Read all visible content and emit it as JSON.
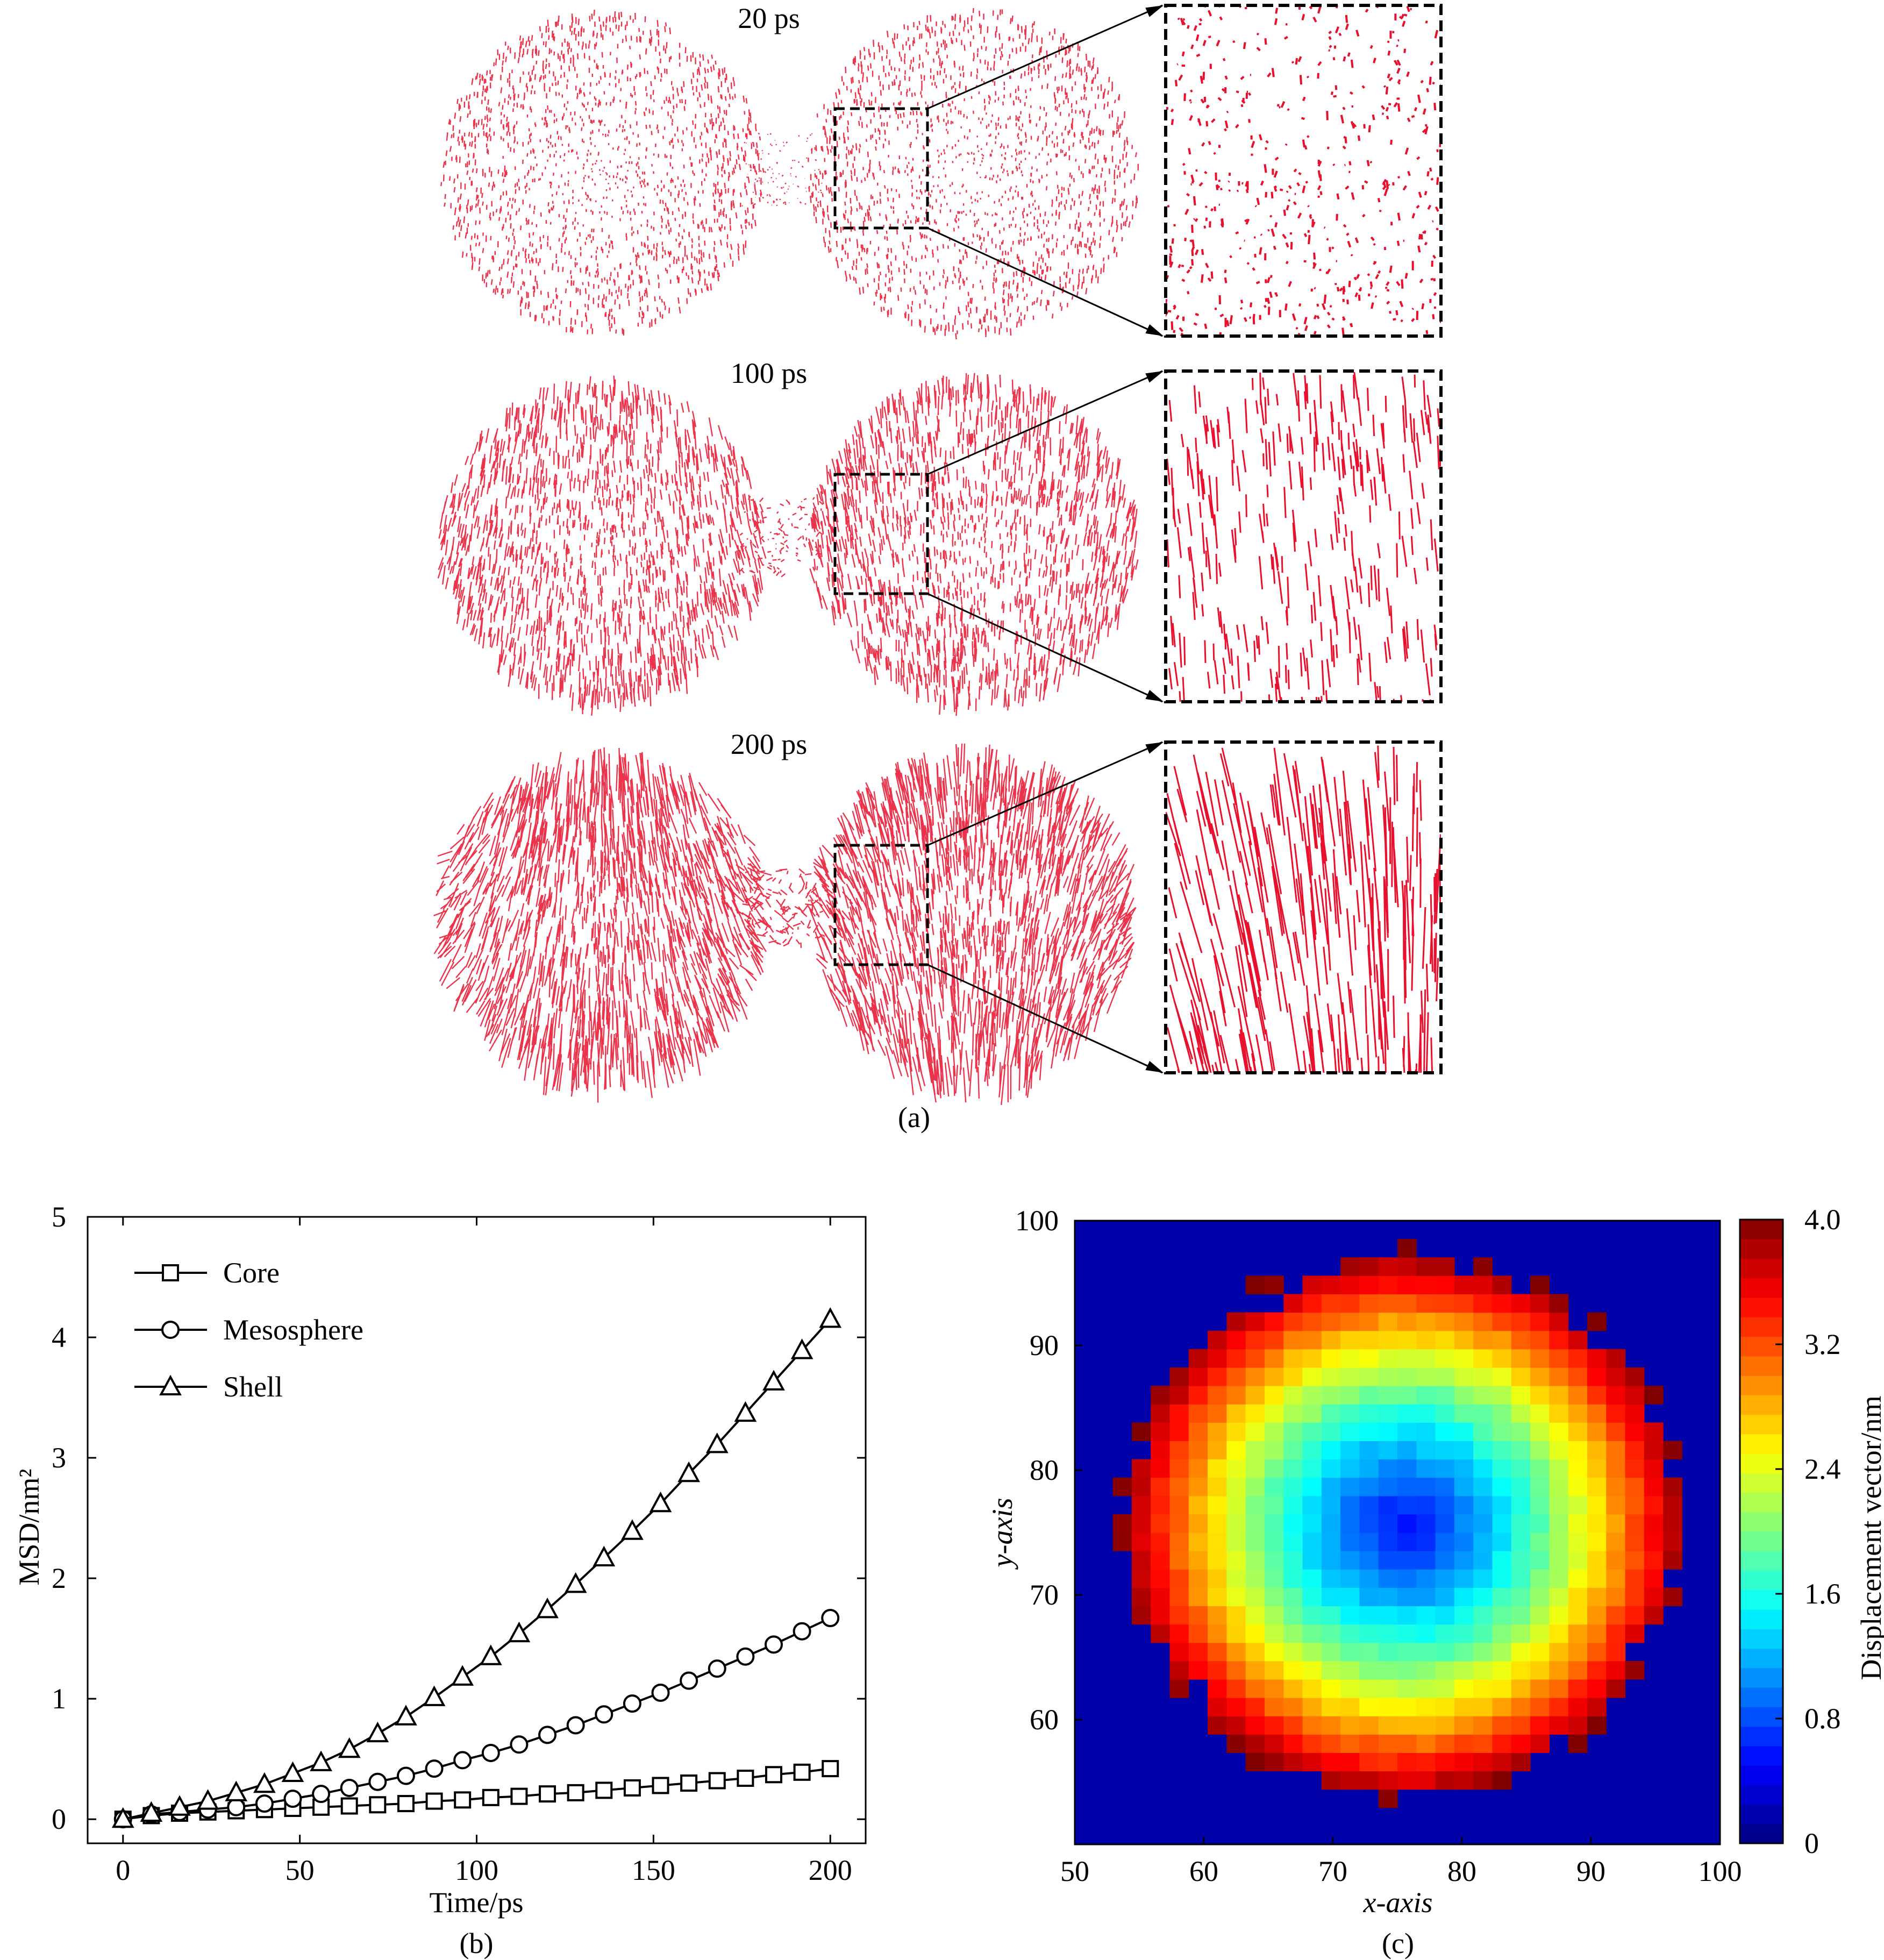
{
  "panel_a": {
    "caption": "(a)",
    "frames": [
      {
        "label": "20 ps",
        "seed": 11,
        "len": 9,
        "swirl": 0.15,
        "density": 1700,
        "zoomLen": 14,
        "zoomCount": 520
      },
      {
        "label": "100 ps",
        "seed": 23,
        "len": 26,
        "swirl": 0.35,
        "density": 1500,
        "zoomLen": 55,
        "zoomCount": 300
      },
      {
        "label": "200 ps",
        "seed": 37,
        "len": 52,
        "swirl": 0.7,
        "density": 1400,
        "zoomLen": 140,
        "zoomCount": 260
      }
    ],
    "vector_color": "#e8102c"
  },
  "chart_data": [
    {
      "type": "line",
      "panel": "(b)",
      "xlabel": "Time/ps",
      "ylabel": "MSD/nm²",
      "xlim": [
        -10,
        210
      ],
      "ylim": [
        -0.2,
        5
      ],
      "xticks": [
        0,
        50,
        100,
        150,
        200
      ],
      "yticks": [
        0,
        1,
        2,
        3,
        4,
        5
      ],
      "x": [
        0,
        8,
        16,
        24,
        32,
        40,
        48,
        56,
        64,
        72,
        80,
        88,
        96,
        104,
        112,
        120,
        128,
        136,
        144,
        152,
        160,
        168,
        176,
        184,
        192,
        200
      ],
      "series": [
        {
          "name": "Core",
          "marker": "square",
          "values": [
            0.0,
            0.03,
            0.05,
            0.06,
            0.07,
            0.08,
            0.09,
            0.1,
            0.11,
            0.12,
            0.13,
            0.15,
            0.16,
            0.18,
            0.19,
            0.21,
            0.22,
            0.24,
            0.26,
            0.28,
            0.3,
            0.32,
            0.34,
            0.37,
            0.39,
            0.42
          ]
        },
        {
          "name": "Mesosphere",
          "marker": "circle",
          "values": [
            0.0,
            0.04,
            0.06,
            0.08,
            0.1,
            0.13,
            0.17,
            0.21,
            0.26,
            0.31,
            0.36,
            0.42,
            0.49,
            0.55,
            0.62,
            0.7,
            0.78,
            0.87,
            0.96,
            1.05,
            1.15,
            1.25,
            1.35,
            1.45,
            1.56,
            1.67
          ]
        },
        {
          "name": "Shell",
          "marker": "triangle",
          "values": [
            0.0,
            0.05,
            0.1,
            0.15,
            0.22,
            0.29,
            0.38,
            0.47,
            0.58,
            0.71,
            0.85,
            1.01,
            1.18,
            1.35,
            1.54,
            1.74,
            1.95,
            2.17,
            2.39,
            2.62,
            2.87,
            3.11,
            3.37,
            3.63,
            3.89,
            4.15
          ]
        }
      ]
    },
    {
      "type": "heatmap",
      "panel": "(c)",
      "xlabel": "x-axis",
      "ylabel": "y-axis",
      "xlim": [
        50,
        100
      ],
      "ylim": [
        50,
        100
      ],
      "xticks": [
        50,
        60,
        70,
        80,
        90,
        100
      ],
      "yticks": [
        60,
        70,
        80,
        90,
        100
      ],
      "grid_cells": 34,
      "center": [
        75.5,
        75.5
      ],
      "radius": 21.5,
      "min_at_center": 0.6,
      "max_at_edge": 3.9,
      "colorbar": {
        "label": "Displacement vector/nm",
        "ticks": [
          "0",
          "0.8",
          "1.6",
          "2.4",
          "3.2",
          "4.0"
        ],
        "range": [
          0,
          4.0
        ]
      }
    }
  ],
  "caption_b": "(b)",
  "caption_c": "(c)"
}
